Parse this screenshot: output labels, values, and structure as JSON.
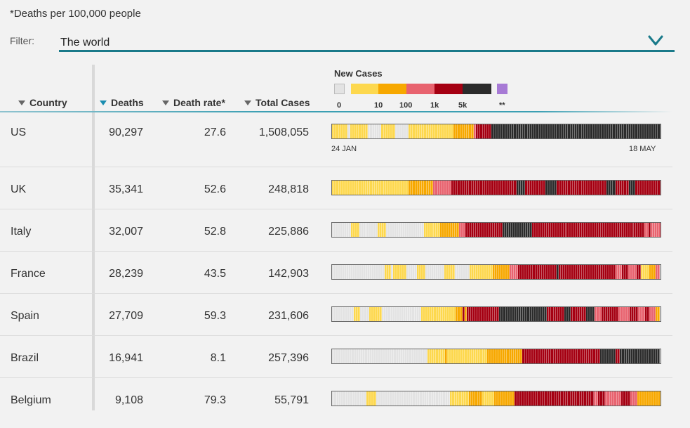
{
  "note": "*Deaths per 100,000 people",
  "filter": {
    "label": "Filter:",
    "value": "The world"
  },
  "columns": {
    "country": "Country",
    "deaths": "Deaths",
    "rate": "Death rate*",
    "cases": "Total Cases"
  },
  "legend": {
    "title": "New Cases",
    "ticks": [
      "0",
      "10",
      "100",
      "1k",
      "5k",
      "**"
    ],
    "colors": {
      "zero": "#e3e3e3",
      "lt10": "#fdd84e",
      "lt100": "#f7a800",
      "lt1k": "#e8636f",
      "lt5k": "#a50012",
      "ge5k": "#2b2b2b",
      "special": "#a77ad5"
    }
  },
  "dates": {
    "start": "24 JAN",
    "end": "18 MAY"
  },
  "rows": [
    {
      "country": "US",
      "deaths": "90,297",
      "rate": "27.6",
      "cases": "1,508,055",
      "bands": [
        [
          "y",
          7
        ],
        [
          "g",
          1
        ],
        [
          "y",
          8
        ],
        [
          "g",
          6
        ],
        [
          "y",
          6
        ],
        [
          "g",
          6
        ],
        [
          "y",
          20
        ],
        [
          "o",
          9
        ],
        [
          "p",
          1
        ],
        [
          "r",
          7
        ],
        [
          "k",
          75
        ]
      ]
    },
    {
      "country": "UK",
      "deaths": "35,341",
      "rate": "52.6",
      "cases": "248,818",
      "bands": [
        [
          "y",
          34
        ],
        [
          "o",
          11
        ],
        [
          "p",
          8
        ],
        [
          "r",
          29
        ],
        [
          "k",
          4
        ],
        [
          "r",
          9
        ],
        [
          "k",
          5
        ],
        [
          "r",
          22
        ],
        [
          "k",
          4
        ],
        [
          "r",
          6
        ],
        [
          "k",
          3
        ],
        [
          "r",
          11
        ]
      ]
    },
    {
      "country": "Italy",
      "deaths": "32,007",
      "rate": "52.8",
      "cases": "225,886",
      "bands": [
        [
          "g",
          9
        ],
        [
          "y",
          4
        ],
        [
          "g",
          9
        ],
        [
          "y",
          4
        ],
        [
          "g",
          18
        ],
        [
          "y",
          8
        ],
        [
          "o",
          9
        ],
        [
          "p",
          3
        ],
        [
          "r",
          18
        ],
        [
          "k",
          14
        ],
        [
          "r",
          54
        ],
        [
          "p",
          2
        ],
        [
          "r",
          1
        ],
        [
          "p",
          5
        ]
      ]
    },
    {
      "country": "France",
      "deaths": "28,239",
      "rate": "43.5",
      "cases": "142,903",
      "bands": [
        [
          "g",
          25
        ],
        [
          "y",
          3
        ],
        [
          "g",
          1
        ],
        [
          "y",
          6
        ],
        [
          "g",
          5
        ],
        [
          "y",
          4
        ],
        [
          "g",
          9
        ],
        [
          "y",
          5
        ],
        [
          "g",
          7
        ],
        [
          "y",
          11
        ],
        [
          "o",
          8
        ],
        [
          "p",
          4
        ],
        [
          "r",
          18
        ],
        [
          "k",
          1
        ],
        [
          "r",
          27
        ],
        [
          "p",
          3
        ],
        [
          "r",
          3
        ],
        [
          "p",
          4
        ],
        [
          "r",
          2
        ],
        [
          "y",
          4
        ],
        [
          "o",
          3
        ],
        [
          "p",
          2
        ]
      ]
    },
    {
      "country": "Spain",
      "deaths": "27,709",
      "rate": "59.3",
      "cases": "231,606",
      "bands": [
        [
          "g",
          10
        ],
        [
          "y",
          3
        ],
        [
          "g",
          4
        ],
        [
          "y",
          6
        ],
        [
          "g",
          18
        ],
        [
          "y",
          16
        ],
        [
          "o",
          3
        ],
        [
          "r",
          1
        ],
        [
          "o",
          1
        ],
        [
          "r",
          15
        ],
        [
          "k",
          22
        ],
        [
          "r",
          8
        ],
        [
          "k",
          3
        ],
        [
          "r",
          7
        ],
        [
          "k",
          4
        ],
        [
          "p",
          3
        ],
        [
          "r",
          8
        ],
        [
          "p",
          5
        ],
        [
          "r",
          4
        ],
        [
          "p",
          3
        ],
        [
          "r",
          2
        ],
        [
          "p",
          3
        ],
        [
          "o",
          2
        ]
      ]
    },
    {
      "country": "Brazil",
      "deaths": "16,941",
      "rate": "8.1",
      "cases": "257,396",
      "bands": [
        [
          "g",
          43
        ],
        [
          "y",
          8
        ],
        [
          "o",
          1
        ],
        [
          "y",
          18
        ],
        [
          "o",
          16
        ],
        [
          "r",
          35
        ],
        [
          "k",
          7
        ],
        [
          "r",
          2
        ],
        [
          "k",
          18
        ]
      ]
    },
    {
      "country": "Belgium",
      "deaths": "9,108",
      "rate": "79.3",
      "cases": "55,791",
      "bands": [
        [
          "g",
          15
        ],
        [
          "y",
          4
        ],
        [
          "g",
          32
        ],
        [
          "y",
          8
        ],
        [
          "o",
          6
        ],
        [
          "y",
          5
        ],
        [
          "o",
          9
        ],
        [
          "r",
          34
        ],
        [
          "p",
          2
        ],
        [
          "r",
          3
        ],
        [
          "p",
          7
        ],
        [
          "r",
          4
        ],
        [
          "p",
          3
        ],
        [
          "o",
          10
        ]
      ]
    }
  ]
}
